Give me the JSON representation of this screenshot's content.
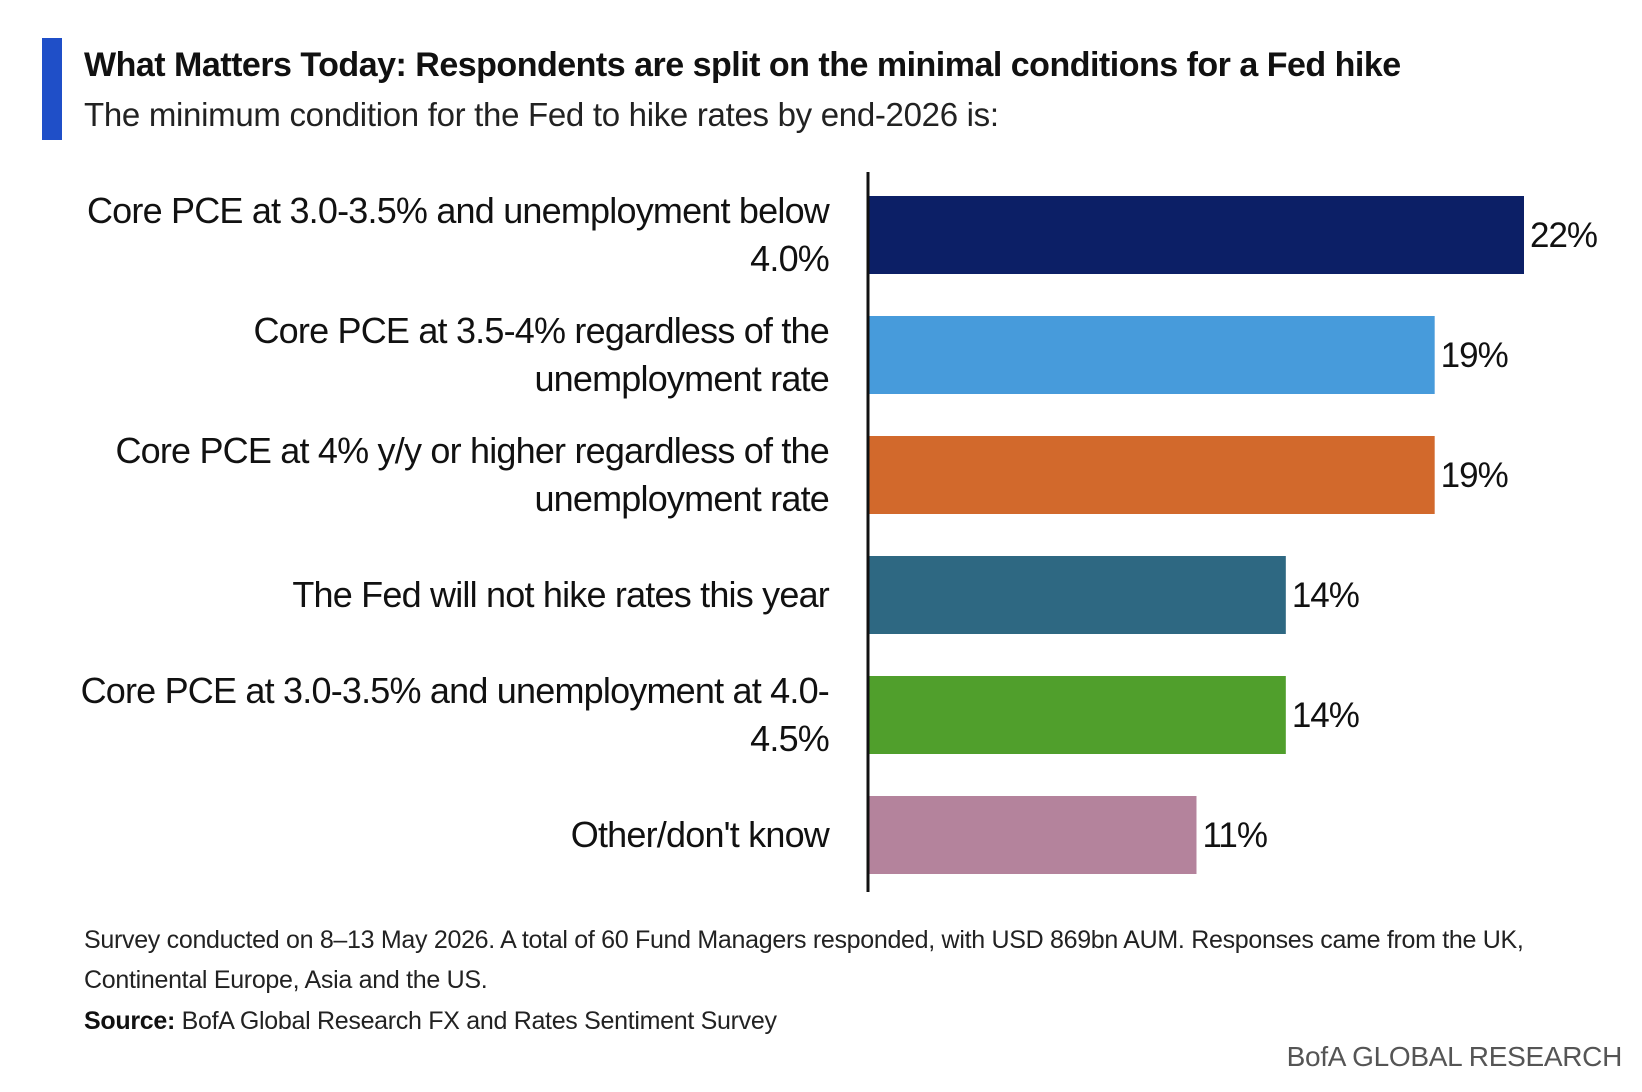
{
  "header": {
    "title": "What Matters Today: Respondents are split on the minimal conditions for a Fed hike",
    "subtitle": "The minimum condition for the Fed to hike rates by end-2026 is:"
  },
  "chart_data": {
    "type": "bar",
    "orientation": "horizontal",
    "categories": [
      [
        "Core PCE at 3.0-3.5% and unemployment below",
        "4.0%"
      ],
      [
        "Core PCE at 3.5-4% regardless of the",
        "unemployment rate"
      ],
      [
        "Core PCE at 4% y/y or higher regardless of the",
        "unemployment rate"
      ],
      [
        "The Fed will not hike rates this year"
      ],
      [
        "Core PCE at 3.0-3.5% and unemployment at 4.0-",
        "4.5%"
      ],
      [
        "Other/don't know"
      ]
    ],
    "values": [
      22,
      19,
      19,
      14,
      14,
      11
    ],
    "value_labels": [
      "22%",
      "19%",
      "19%",
      "14%",
      "14%",
      "11%"
    ],
    "colors": [
      "#0c1f66",
      "#479bdb",
      "#d2692c",
      "#2e6882",
      "#509f2c",
      "#b4839c"
    ],
    "xlim": [
      0,
      22
    ],
    "grid": false
  },
  "footer": {
    "note": "Survey conducted on 8–13 May 2026. A total of 60 Fund Managers responded, with USD 869bn AUM. Responses came from the UK, Continental Europe, Asia and the US.",
    "source_label": "Source:",
    "source_text": " BofA Global Research FX and Rates Sentiment Survey",
    "brand": "BofA GLOBAL RESEARCH"
  }
}
